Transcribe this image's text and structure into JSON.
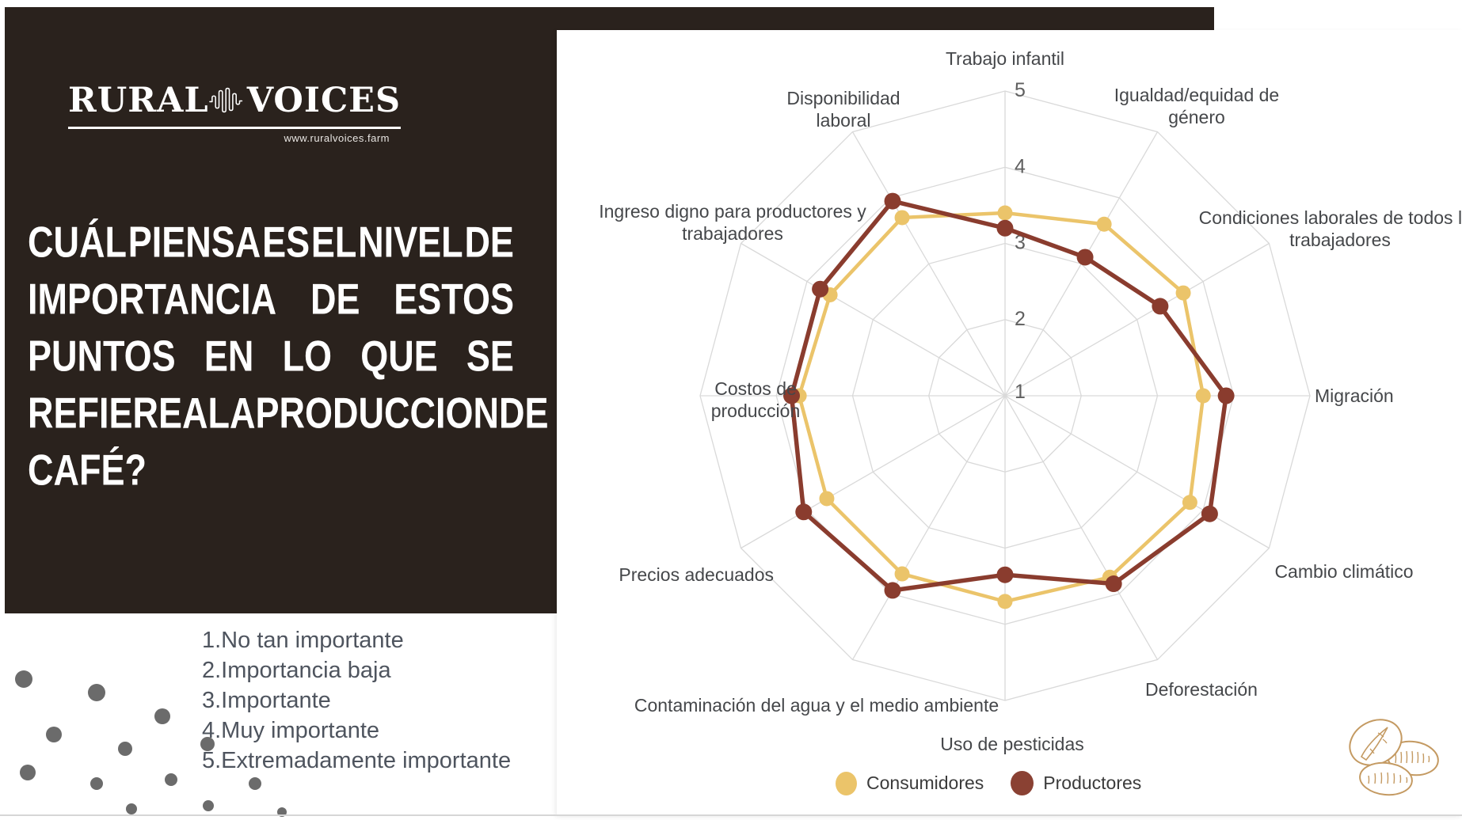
{
  "brand": {
    "name_left": "RURAL",
    "name_right": "VOICES",
    "url": "www.ruralvoices.farm"
  },
  "question_lines": [
    "CUÁL PIENSA ES EL NIVEL DE",
    "IMPORTANCIA DE ESTOS",
    "PUNTOS EN LO QUE SE",
    "REFIERE A LA PRODUCCION DE",
    "CAFÉ?"
  ],
  "scale_items": [
    "No tan importante",
    "Importancia baja",
    "Importante",
    "Muy importante",
    "Extremadamente importante"
  ],
  "chart_data": {
    "type": "radar",
    "title": "",
    "categories": [
      "Trabajo infantil",
      "Igualdad/equidad de género",
      "Condiciones laborales de todos los trabajadores",
      "Migración",
      "Cambio climático",
      "Deforestación",
      "Uso de pesticidas",
      "Contaminación del agua y el medio ambiente",
      "Precios adecuados",
      "Costos de producción",
      "Ingreso digno para productores y trabajadores",
      "Disponibilidad laboral"
    ],
    "series": [
      {
        "name": "Consumidores",
        "color": "#ebc46a",
        "values": [
          3.4,
          3.6,
          3.7,
          3.6,
          3.8,
          3.75,
          3.7,
          3.7,
          3.7,
          3.7,
          3.65,
          3.7
        ]
      },
      {
        "name": "Productores",
        "color": "#8a3c2e",
        "values": [
          3.2,
          3.1,
          3.35,
          3.9,
          4.1,
          3.85,
          3.35,
          3.95,
          4.05,
          3.8,
          3.8,
          3.95
        ]
      }
    ],
    "ticks": [
      "1",
      "2",
      "3",
      "4",
      "5"
    ],
    "rmin": 1,
    "rmax": 5,
    "grid": true,
    "legend_position": "bottom",
    "grid_color": "#d9d9d9",
    "label_color": "#45474a",
    "tick_color": "#5f5f5f"
  }
}
